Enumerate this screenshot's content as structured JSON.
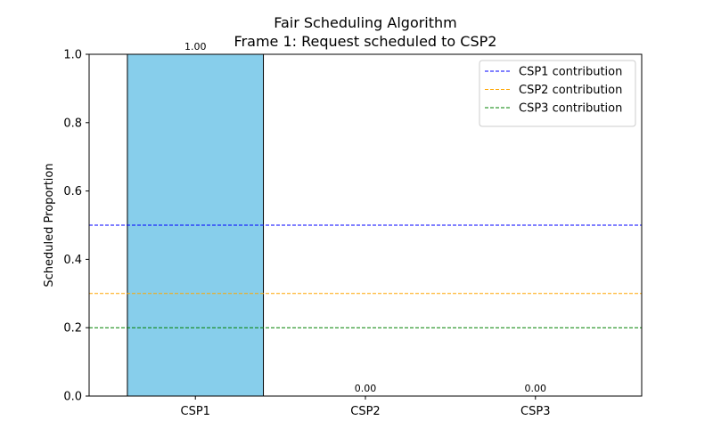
{
  "chart_data": {
    "type": "bar",
    "title": "Fair Scheduling Algorithm",
    "subtitle": "Frame 1: Request scheduled to CSP2",
    "xlabel": "",
    "ylabel": "Scheduled Proportion",
    "categories": [
      "CSP1",
      "CSP2",
      "CSP3"
    ],
    "values": [
      1.0,
      0.0,
      0.0
    ],
    "data_labels": [
      "1.00",
      "0.00",
      "0.00"
    ],
    "ylim": [
      0,
      1.0
    ],
    "yticks": [
      "0.0",
      "0.2",
      "0.4",
      "0.6",
      "0.8",
      "1.0"
    ],
    "bar_color": "#87CEEB",
    "bar_edge_color": "#000000",
    "grid": false,
    "legend_position": "top-right",
    "reference_lines": [
      {
        "name": "CSP1 contribution",
        "y": 0.5,
        "color": "#0000ff"
      },
      {
        "name": "CSP2 contribution",
        "y": 0.3,
        "color": "#ffa500"
      },
      {
        "name": "CSP3 contribution",
        "y": 0.2,
        "color": "#008000"
      }
    ]
  }
}
